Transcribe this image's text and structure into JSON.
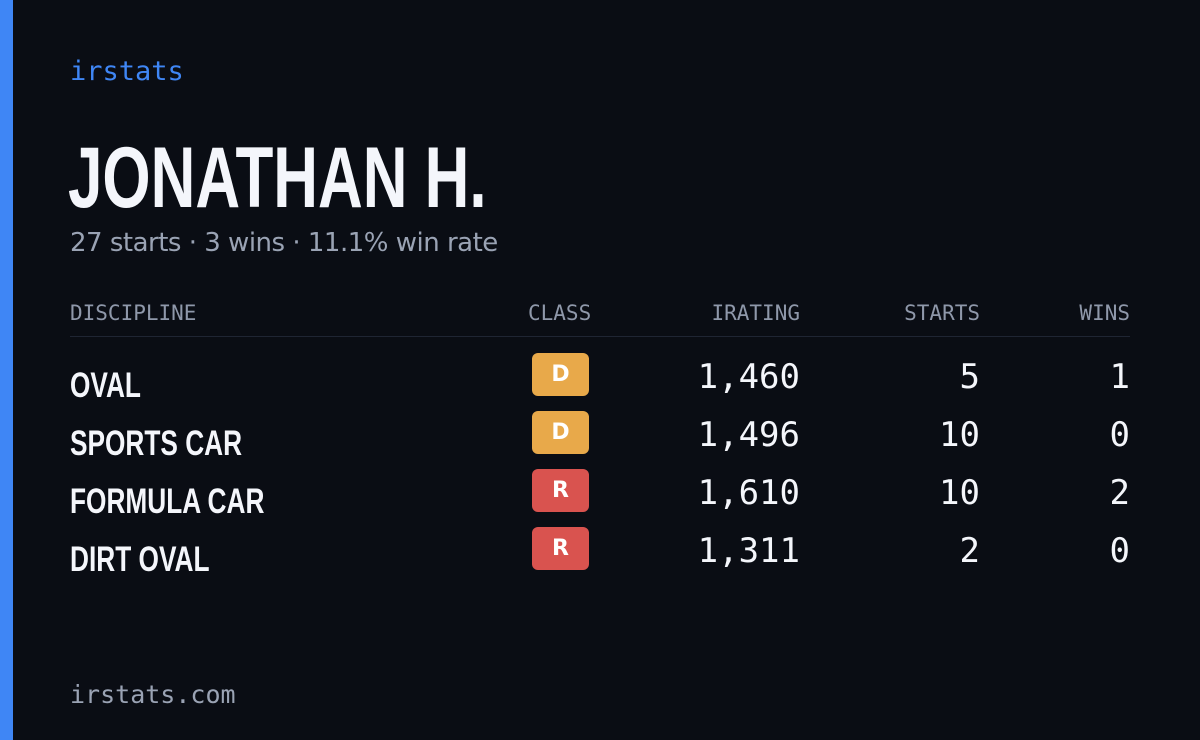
{
  "brand": "irstats",
  "driver": {
    "name": "JONATHAN H.",
    "summary": "27 starts · 3 wins · 11.1% win rate"
  },
  "table": {
    "headers": {
      "discipline": "DISCIPLINE",
      "class": "CLASS",
      "irating": "IRATING",
      "starts": "STARTS",
      "wins": "WINS"
    },
    "rows": [
      {
        "discipline": "OVAL",
        "class": "D",
        "irating": "1,460",
        "starts": "5",
        "wins": "1"
      },
      {
        "discipline": "SPORTS CAR",
        "class": "D",
        "irating": "1,496",
        "starts": "10",
        "wins": "0"
      },
      {
        "discipline": "FORMULA CAR",
        "class": "R",
        "irating": "1,610",
        "starts": "10",
        "wins": "2"
      },
      {
        "discipline": "DIRT OVAL",
        "class": "R",
        "irating": "1,311",
        "starts": "2",
        "wins": "0"
      }
    ]
  },
  "colors": {
    "accent": "#3f86f5",
    "background": "#0a0d14",
    "class_D": "#e8a94a",
    "class_R": "#d9534f"
  },
  "footer": "irstats.com"
}
